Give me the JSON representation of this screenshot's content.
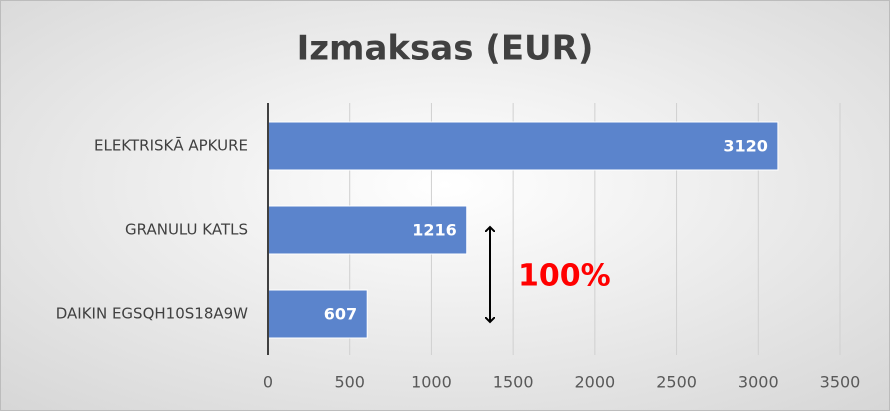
{
  "chart_data": {
    "type": "bar",
    "orientation": "horizontal",
    "title": "Izmaksas (EUR)",
    "categories": [
      "ELEKTRISKĀ APKURE",
      "GRANULU KATLS",
      "DAIKIN EGSQH10S18A9W"
    ],
    "values": [
      3120,
      1216,
      607
    ],
    "color": "#5b84cc",
    "xlim": [
      0,
      3500
    ],
    "xticks": [
      0,
      500,
      1000,
      1500,
      2000,
      2500,
      3000,
      3500
    ],
    "grid": true,
    "annotation": "100%"
  }
}
